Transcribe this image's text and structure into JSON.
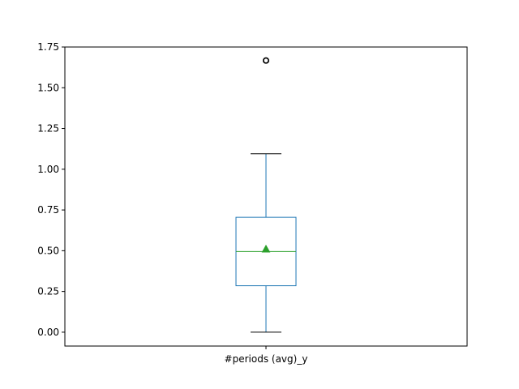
{
  "chart_data": {
    "type": "box",
    "title": "",
    "xlabel": "",
    "ylabel": "",
    "categories": [
      "#periods (avg)_y"
    ],
    "ylim": [
      -0.085,
      1.75
    ],
    "yticks": [
      0.0,
      0.25,
      0.5,
      0.75,
      1.0,
      1.25,
      1.5,
      1.75
    ],
    "ytick_labels": [
      "0.00",
      "0.25",
      "0.50",
      "0.75",
      "1.00",
      "1.25",
      "1.50",
      "1.75"
    ],
    "grid": false,
    "legend": "none",
    "boxes": [
      {
        "category": "#periods (avg)_y",
        "whisker_low": 0.0,
        "q1": 0.285,
        "median": 0.495,
        "q3": 0.705,
        "whisker_high": 1.095,
        "mean": 0.51,
        "outliers": [
          1.667,
          1.667
        ]
      }
    ],
    "colors": {
      "box": "#1f77b4",
      "median": "#2ca02c",
      "mean": "#2ca02c",
      "whisker_cap": "#000000",
      "outlier": "#000000"
    }
  }
}
